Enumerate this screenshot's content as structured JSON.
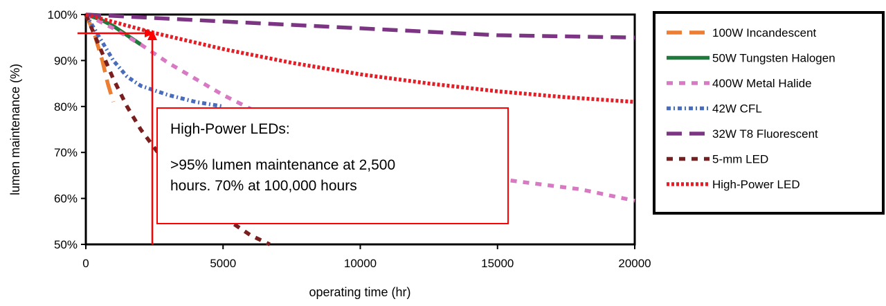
{
  "chart_data": {
    "type": "line",
    "xlabel": "operating time (hr)",
    "ylabel": "lumen maintenance (%)",
    "xlim": [
      0,
      20000
    ],
    "ylim": [
      50,
      100
    ],
    "x_ticks": [
      "0",
      "5000",
      "10000",
      "15000",
      "20000"
    ],
    "y_ticks": [
      "50%",
      "60%",
      "70%",
      "80%",
      "90%",
      "100%"
    ],
    "grid": false,
    "legend_position": "right",
    "series": [
      {
        "name": "100W Incandescent",
        "color": "#ed7d31",
        "dash": "long-dash",
        "points": [
          [
            0,
            100
          ],
          [
            300,
            96
          ],
          [
            600,
            90
          ],
          [
            800,
            85
          ],
          [
            1000,
            81
          ]
        ]
      },
      {
        "name": "50W Tungsten Halogen",
        "color": "#1e7b3c",
        "dash": "solid",
        "points": [
          [
            0,
            100
          ],
          [
            500,
            99
          ],
          [
            1000,
            97.5
          ],
          [
            1500,
            95.5
          ],
          [
            2000,
            93.5
          ]
        ]
      },
      {
        "name": "400W Metal Halide",
        "color": "#d77ac3",
        "dash": "dash",
        "points": [
          [
            0,
            100
          ],
          [
            1000,
            97
          ],
          [
            2000,
            93.5
          ],
          [
            3000,
            89.5
          ],
          [
            4000,
            86
          ],
          [
            5000,
            82.5
          ],
          [
            6000,
            79.5
          ],
          [
            7000,
            77
          ],
          [
            8000,
            74.5
          ],
          [
            10000,
            70.5
          ],
          [
            12000,
            67
          ],
          [
            14000,
            65
          ],
          [
            16000,
            63.5
          ],
          [
            18000,
            62
          ],
          [
            20000,
            59.5
          ]
        ]
      },
      {
        "name": "42W CFL",
        "color": "#4a6cbd",
        "dash": "dash-dot",
        "points": [
          [
            0,
            100
          ],
          [
            500,
            95
          ],
          [
            1000,
            90
          ],
          [
            1500,
            86.5
          ],
          [
            2000,
            84.5
          ],
          [
            3000,
            82.5
          ],
          [
            4000,
            81
          ],
          [
            5000,
            80
          ]
        ]
      },
      {
        "name": "32W T8 Fluorescent",
        "color": "#7b3583",
        "dash": "long-dash",
        "points": [
          [
            0,
            100
          ],
          [
            5000,
            98.5
          ],
          [
            10000,
            97
          ],
          [
            15000,
            95.5
          ],
          [
            20000,
            95
          ]
        ]
      },
      {
        "name": "5-mm LED",
        "color": "#7a1f1f",
        "dash": "dash",
        "points": [
          [
            0,
            100
          ],
          [
            500,
            93
          ],
          [
            1000,
            86
          ],
          [
            1500,
            80
          ],
          [
            2000,
            75
          ],
          [
            3000,
            67
          ],
          [
            4000,
            61
          ],
          [
            5000,
            56
          ],
          [
            6000,
            52
          ],
          [
            6700,
            50
          ]
        ]
      },
      {
        "name": "High-Power LED",
        "color": "#e41e26",
        "dash": "dot",
        "points": [
          [
            0,
            100
          ],
          [
            2500,
            96
          ],
          [
            5000,
            92.5
          ],
          [
            7500,
            89.5
          ],
          [
            10000,
            87
          ],
          [
            12500,
            85
          ],
          [
            15000,
            83.3
          ],
          [
            17500,
            82
          ],
          [
            20000,
            81
          ]
        ]
      }
    ],
    "annotation": {
      "title": "High-Power LEDs:",
      "line1": ">95% lumen maintenance at 2,500",
      "line2": "hours.  70% at 100,000 hours",
      "marker_x": 2500,
      "marker_y": 96
    }
  }
}
